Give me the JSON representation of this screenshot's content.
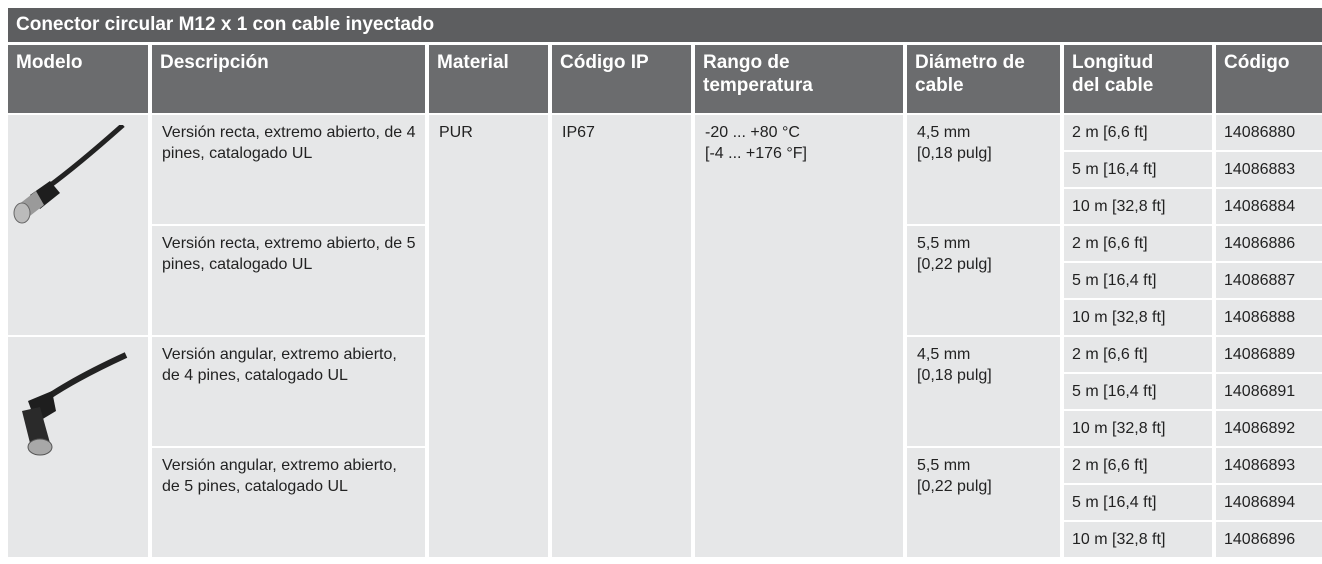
{
  "title": "Conector circular M12 x 1 con cable inyectado",
  "headers": [
    [
      "Modelo"
    ],
    [
      "Descripción"
    ],
    [
      "Material"
    ],
    [
      "Código IP"
    ],
    [
      "Rango de",
      "temperatura"
    ],
    [
      "Diámetro de",
      "cable"
    ],
    [
      "Longitud",
      "del cable"
    ],
    [
      "Código"
    ]
  ],
  "material": "PUR",
  "ip": "IP67",
  "temperature": [
    "-20 ... +80 °C",
    "[-4 ... +176 °F]"
  ],
  "rows": [
    {
      "description": "Versión recta, extremo abierto, de 4 pines, catalogado UL",
      "diameter": [
        "4,5 mm",
        "[0,18 pulg]"
      ],
      "lengths": [
        "2 m [6,6 ft]",
        "5 m [16,4 ft]",
        "10 m [32,8 ft]"
      ],
      "codes": [
        "14086880",
        "14086883",
        "14086884"
      ]
    },
    {
      "description": "Versión recta, extremo abierto, de 5 pines, catalogado UL",
      "diameter": [
        "5,5 mm",
        "[0,22 pulg]"
      ],
      "lengths": [
        "2 m [6,6 ft]",
        "5 m [16,4 ft]",
        "10 m [32,8 ft]"
      ],
      "codes": [
        "14086886",
        "14086887",
        "14086888"
      ]
    },
    {
      "description": "Versión angular, extremo abierto, de 4 pines, catalogado UL",
      "diameter": [
        "4,5 mm",
        "[0,18 pulg]"
      ],
      "lengths": [
        "2 m [6,6 ft]",
        "5 m [16,4 ft]",
        "10 m [32,8 ft]"
      ],
      "codes": [
        "14086889",
        "14086891",
        "14086892"
      ]
    },
    {
      "description": "Versión angular, extremo abierto, de 5 pines, catalogado UL",
      "diameter": [
        "5,5 mm",
        "[0,22 pulg]"
      ],
      "lengths": [
        "2 m [6,6 ft]",
        "5 m [16,4 ft]",
        "10 m [32,8 ft]"
      ],
      "codes": [
        "14086893",
        "14086894",
        "14086896"
      ]
    }
  ]
}
